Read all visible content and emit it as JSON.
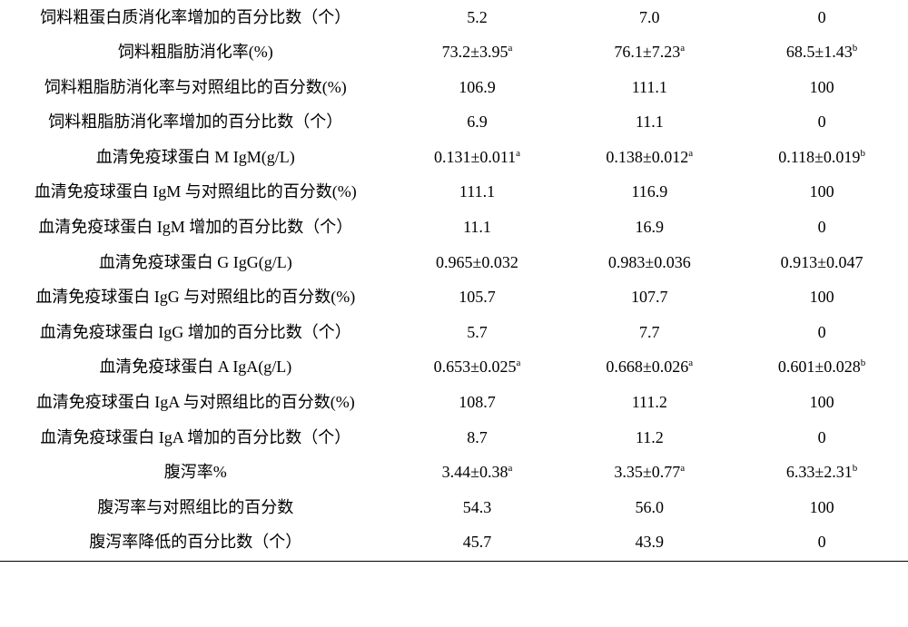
{
  "table": {
    "background_color": "#ffffff",
    "text_color": "#000000",
    "font_size": 18,
    "rows": [
      {
        "label": "饲料粗蛋白质消化率增加的百分比数（个）",
        "col1": {
          "val": "5.2"
        },
        "col2": {
          "val": "7.0"
        },
        "col3": {
          "val": "0"
        }
      },
      {
        "label": "饲料粗脂肪消化率(%)",
        "col1": {
          "val": "73.2±3.95",
          "sup": "a"
        },
        "col2": {
          "val": "76.1±7.23",
          "sup": "a"
        },
        "col3": {
          "val": "68.5±1.43",
          "sup": "b"
        }
      },
      {
        "label": "饲料粗脂肪消化率与对照组比的百分数(%)",
        "col1": {
          "val": "106.9"
        },
        "col2": {
          "val": "111.1"
        },
        "col3": {
          "val": "100"
        }
      },
      {
        "label": "饲料粗脂肪消化率增加的百分比数（个）",
        "col1": {
          "val": "6.9"
        },
        "col2": {
          "val": "11.1"
        },
        "col3": {
          "val": "0"
        }
      },
      {
        "label": "血清免疫球蛋白 M IgM(g/L)",
        "col1": {
          "val": "0.131±0.011",
          "sup": "a"
        },
        "col2": {
          "val": "0.138±0.012",
          "sup": "a"
        },
        "col3": {
          "val": "0.118±0.019",
          "sup": "b"
        }
      },
      {
        "label": "血清免疫球蛋白 IgM 与对照组比的百分数(%)",
        "col1": {
          "val": "111.1"
        },
        "col2": {
          "val": "116.9"
        },
        "col3": {
          "val": "100"
        }
      },
      {
        "label": "血清免疫球蛋白 IgM 增加的百分比数（个）",
        "col1": {
          "val": "11.1"
        },
        "col2": {
          "val": "16.9"
        },
        "col3": {
          "val": "0"
        }
      },
      {
        "label": "血清免疫球蛋白 G IgG(g/L)",
        "col1": {
          "val": "0.965±0.032"
        },
        "col2": {
          "val": "0.983±0.036"
        },
        "col3": {
          "val": "0.913±0.047"
        }
      },
      {
        "label": "血清免疫球蛋白 IgG 与对照组比的百分数(%)",
        "col1": {
          "val": "105.7"
        },
        "col2": {
          "val": "107.7"
        },
        "col3": {
          "val": "100"
        }
      },
      {
        "label": "血清免疫球蛋白 IgG 增加的百分比数（个）",
        "col1": {
          "val": "5.7"
        },
        "col2": {
          "val": "7.7"
        },
        "col3": {
          "val": "0"
        }
      },
      {
        "label": "血清免疫球蛋白 A IgA(g/L)",
        "col1": {
          "val": "0.653±0.025",
          "sup": "a"
        },
        "col2": {
          "val": "0.668±0.026",
          "sup": "a"
        },
        "col3": {
          "val": "0.601±0.028",
          "sup": "b"
        }
      },
      {
        "label": "血清免疫球蛋白 IgA 与对照组比的百分数(%)",
        "col1": {
          "val": "108.7"
        },
        "col2": {
          "val": "111.2"
        },
        "col3": {
          "val": "100"
        }
      },
      {
        "label": "血清免疫球蛋白 IgA 增加的百分比数（个）",
        "col1": {
          "val": "8.7"
        },
        "col2": {
          "val": "11.2"
        },
        "col3": {
          "val": "0"
        }
      },
      {
        "label": "腹泻率%",
        "col1": {
          "val": "3.44±0.38",
          "sup": "a"
        },
        "col2": {
          "val": "3.35±0.77",
          "sup": "a"
        },
        "col3": {
          "val": "6.33±2.31",
          "sup": "b"
        }
      },
      {
        "label": "腹泻率与对照组比的百分数",
        "col1": {
          "val": "54.3"
        },
        "col2": {
          "val": "56.0"
        },
        "col3": {
          "val": "100"
        }
      },
      {
        "label": "腹泻率降低的百分比数（个）",
        "col1": {
          "val": "45.7"
        },
        "col2": {
          "val": "43.9"
        },
        "col3": {
          "val": "0"
        },
        "last": true
      }
    ]
  }
}
